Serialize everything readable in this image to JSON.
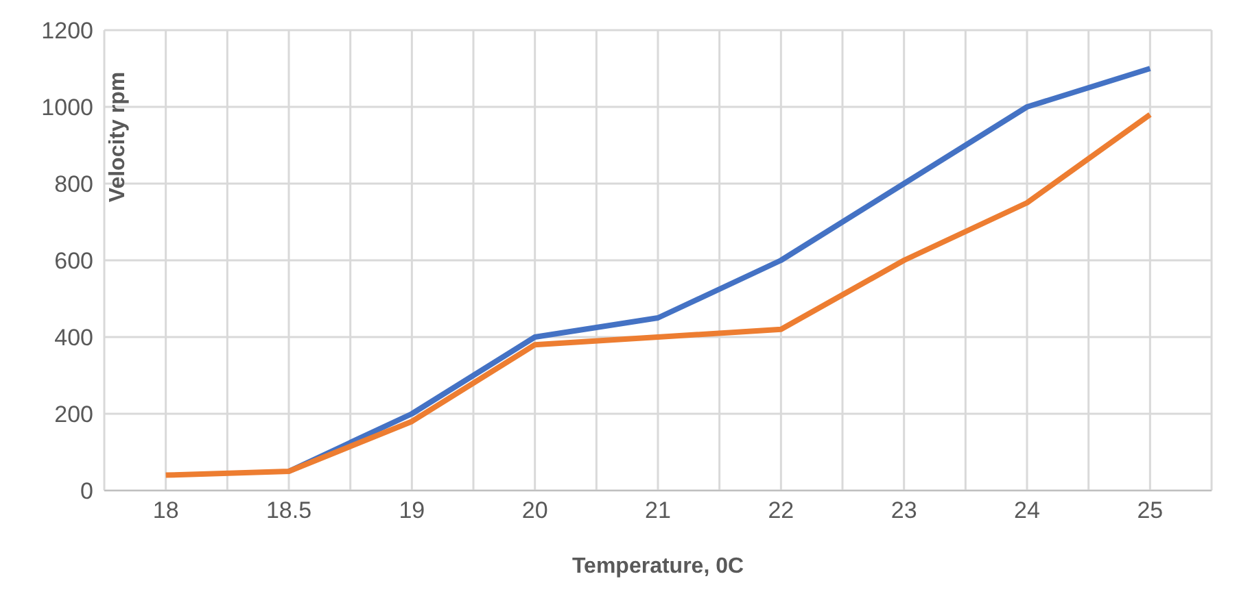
{
  "chart_data": {
    "type": "line",
    "xlabel": "Temperature, 0C",
    "ylabel": "Velocity rpm",
    "categories": [
      "18",
      "18.5",
      "19",
      "20",
      "21",
      "22",
      "23",
      "24",
      "25"
    ],
    "series": [
      {
        "color": "#4472c4",
        "values": [
          null,
          50,
          200,
          400,
          450,
          600,
          800,
          1000,
          1100
        ]
      },
      {
        "color": "#ed7d31",
        "values": [
          40,
          50,
          180,
          380,
          400,
          420,
          600,
          750,
          980
        ]
      }
    ],
    "ylim": [
      0,
      1200
    ],
    "yticks": [
      0,
      200,
      400,
      600,
      800,
      1000,
      1200
    ],
    "grid": true,
    "legend": false,
    "marker": "none",
    "line_style": "solid"
  }
}
